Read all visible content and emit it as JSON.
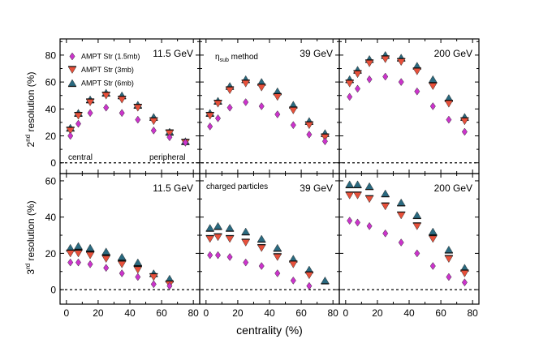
{
  "chart_data": {
    "type": "scatter",
    "x_label": "centrality (%)",
    "row_labels": [
      {
        "prefix": "2",
        "sup": "nd",
        "suffix": " resolution (%)"
      },
      {
        "prefix": "3",
        "sup": "rd",
        "suffix": " resolution (%)"
      }
    ],
    "x_ticks": [
      "0",
      "20",
      "40",
      "60",
      "80"
    ],
    "x_range": [
      -4,
      84
    ],
    "row_ranges": [
      [
        -8,
        92
      ],
      [
        -8,
        64
      ]
    ],
    "row_ticks": [
      [
        "0",
        "20",
        "40",
        "60",
        "80"
      ],
      [
        "0",
        "20",
        "40",
        "60"
      ]
    ],
    "energies": [
      "11.5 GeV",
      "39 GeV",
      "200 GeV"
    ],
    "legend": [
      {
        "label": "AMPT Str (1.5mb)",
        "symbol": "diamond",
        "color": "#cc33cc"
      },
      {
        "label": "AMPT Str (3mb)",
        "symbol": "triangle-down",
        "color": "#e8503a"
      },
      {
        "label": "AMPT Str (6mb)",
        "symbol": "triangle-up",
        "color": "#2a6a80"
      }
    ],
    "annotations": {
      "method_main": "η",
      "method_sub": "sub",
      "method_rest": " method",
      "charged": "charged particles",
      "central": "central",
      "peripheral": "peripheral"
    },
    "x": [
      2.5,
      7.5,
      15,
      25,
      35,
      45,
      55,
      65,
      75
    ],
    "panels": [
      {
        "row": 0,
        "col": 0,
        "series": [
          [
            20,
            29,
            37,
            41,
            37,
            32,
            24,
            19,
            15
          ],
          [
            24,
            35,
            45,
            50,
            47,
            41,
            31,
            22,
            15
          ],
          [
            26,
            37,
            47,
            52,
            50,
            43,
            34,
            23,
            16
          ]
        ]
      },
      {
        "row": 0,
        "col": 1,
        "series": [
          [
            27,
            33,
            41,
            45,
            42,
            36,
            28,
            21,
            16
          ],
          [
            35,
            44,
            54,
            59,
            56,
            49,
            39,
            28,
            19
          ],
          [
            37,
            46,
            57,
            62,
            60,
            53,
            43,
            31,
            22
          ]
        ]
      },
      {
        "row": 0,
        "col": 2,
        "series": [
          [
            49,
            55,
            62,
            64,
            60,
            53,
            42,
            32,
            23
          ],
          [
            59,
            66,
            74,
            77,
            75,
            68,
            57,
            44,
            31
          ],
          [
            62,
            69,
            77,
            80,
            78,
            72,
            62,
            48,
            34
          ]
        ]
      },
      {
        "row": 1,
        "col": 0,
        "series": [
          [
            15,
            15,
            14,
            12,
            9,
            7,
            3,
            2,
            null
          ],
          [
            20,
            20,
            19,
            17,
            14,
            11,
            7,
            3,
            null
          ],
          [
            23,
            24,
            23,
            21,
            18,
            15,
            9,
            6,
            null
          ]
        ]
      },
      {
        "row": 1,
        "col": 1,
        "series": [
          [
            19,
            19,
            18,
            15,
            13,
            9,
            5,
            2,
            null
          ],
          [
            28,
            29,
            28,
            26,
            23,
            18,
            14,
            8,
            null
          ],
          [
            34,
            35,
            34,
            32,
            28,
            23,
            17,
            11,
            5
          ]
        ]
      },
      {
        "row": 1,
        "col": 2,
        "series": [
          [
            38,
            37,
            35,
            31,
            26,
            20,
            13,
            7,
            4
          ],
          [
            52,
            52,
            50,
            46,
            41,
            35,
            28,
            17,
            9
          ],
          [
            58,
            58,
            57,
            53,
            48,
            41,
            32,
            22,
            12
          ]
        ]
      }
    ]
  }
}
